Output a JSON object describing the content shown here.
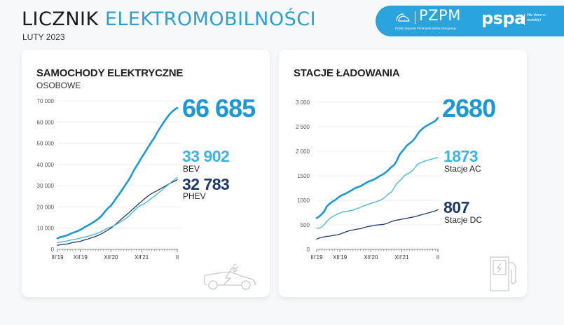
{
  "header": {
    "title_part1": "LICZNIK",
    "title_part2": "ELEKTROMOBILNOŚCI",
    "subtitle": "LUTY 2023"
  },
  "banner": {
    "pzpm_logo": "PZPM",
    "pzpm_subtitle": "Polski Związek Przemysłu Motoryzacyjnego",
    "pspa_logo": "pspa",
    "pspa_tagline": "We drive e-mobility!",
    "background_color": "#2ba4de"
  },
  "cars_card": {
    "title": "SAMOCHODY ELEKTRYCZNE",
    "subtitle": "OSOBOWE",
    "total_value": "66 685",
    "bev_value": "33 902",
    "bev_label": "BEV",
    "phev_value": "32 783",
    "phev_label": "PHEV",
    "icon": "electric-car-icon"
  },
  "stations_card": {
    "title": "STACJE ŁADOWANIA",
    "total_value": "2680",
    "ac_value": "1873",
    "ac_label": "Stacje AC",
    "dc_value": "807",
    "dc_label": "Stacje DC",
    "icon": "charging-station-icon"
  },
  "colors": {
    "total": "#1b98d5",
    "secondary": "#3db4e5",
    "tertiary": "#1d3a6b",
    "grid": "#ececec"
  },
  "chart_data": [
    {
      "type": "line",
      "title": "SAMOCHODY ELEKTRYCZNE OSOBOWE",
      "xlabel": "",
      "ylabel": "",
      "ylim": [
        0,
        70000
      ],
      "yticks": [
        "0",
        "10 000",
        "20 000",
        "30 000",
        "40 000",
        "50 000",
        "60 000",
        "70 000"
      ],
      "ytick_values": [
        0,
        10000,
        20000,
        30000,
        40000,
        50000,
        60000,
        70000
      ],
      "xtick_labels": [
        "III'19",
        "XII'19",
        "XII'20",
        "XII'21",
        "II"
      ],
      "xtick_index": [
        0,
        9,
        21,
        33,
        47
      ],
      "grid": true,
      "legend": "right-side value labels",
      "series": [
        {
          "name": "Total",
          "color": "#1b98d5",
          "width": 2.6,
          "final_label": "66 685",
          "values": [
            5200,
            5700,
            6000,
            6300,
            6700,
            7300,
            7800,
            8200,
            8700,
            9200,
            9900,
            10700,
            11300,
            12000,
            12700,
            13500,
            14400,
            15500,
            16800,
            18300,
            19600,
            20600,
            22300,
            24000,
            25700,
            27400,
            29200,
            31000,
            32800,
            34900,
            37200,
            39300,
            41100,
            43300,
            45100,
            47000,
            49000,
            50800,
            52600,
            54800,
            56800,
            58600,
            60500,
            62100,
            63700,
            64900,
            65900,
            66685
          ]
        },
        {
          "name": "BEV",
          "color": "#3db4e5",
          "width": 1.3,
          "final_label": "33 902",
          "values": [
            3100,
            3400,
            3600,
            3800,
            4000,
            4300,
            4600,
            4800,
            5000,
            5300,
            5600,
            5900,
            6200,
            6500,
            6900,
            7300,
            7800,
            8300,
            8900,
            9600,
            10200,
            10500,
            11000,
            11700,
            12400,
            13100,
            13900,
            14700,
            15700,
            16900,
            18100,
            19300,
            20300,
            21000,
            21500,
            22300,
            23200,
            24200,
            25000,
            26000,
            27000,
            28000,
            29000,
            30000,
            31000,
            32000,
            33000,
            33902
          ]
        },
        {
          "name": "PHEV",
          "color": "#1d3a6b",
          "width": 1.3,
          "final_label": "32 783",
          "values": [
            1900,
            2100,
            2300,
            2400,
            2600,
            2900,
            3200,
            3400,
            3600,
            3800,
            4200,
            4600,
            4900,
            5300,
            5700,
            6100,
            6600,
            7200,
            7800,
            8600,
            9300,
            10000,
            11000,
            12000,
            13100,
            14200,
            15200,
            16200,
            17200,
            18400,
            19400,
            20500,
            21600,
            22600,
            23700,
            24600,
            25600,
            26300,
            27000,
            27600,
            28300,
            29000,
            29600,
            30300,
            31000,
            31600,
            32200,
            32783
          ]
        }
      ]
    },
    {
      "type": "line",
      "title": "STACJE ŁADOWANIA",
      "xlabel": "",
      "ylabel": "",
      "ylim": [
        0,
        3000
      ],
      "yticks": [
        "0",
        "500",
        "1000",
        "1500",
        "2 000",
        "2 500",
        "3 000"
      ],
      "ytick_values": [
        0,
        500,
        1000,
        1500,
        2000,
        2500,
        3000
      ],
      "xtick_labels": [
        "III'19",
        "XII'19",
        "XII'20",
        "XII'21",
        "II"
      ],
      "xtick_index": [
        0,
        9,
        21,
        33,
        47
      ],
      "grid": true,
      "legend": "right-side value labels",
      "series": [
        {
          "name": "Total",
          "color": "#1b98d5",
          "width": 2.6,
          "final_label": "2680",
          "values": [
            640,
            670,
            720,
            780,
            880,
            930,
            970,
            1000,
            1040,
            1080,
            1110,
            1130,
            1160,
            1190,
            1220,
            1250,
            1270,
            1290,
            1320,
            1350,
            1380,
            1400,
            1420,
            1450,
            1480,
            1510,
            1540,
            1580,
            1630,
            1680,
            1720,
            1800,
            1920,
            1990,
            2050,
            2120,
            2160,
            2200,
            2260,
            2340,
            2410,
            2460,
            2500,
            2530,
            2560,
            2590,
            2620,
            2680
          ]
        },
        {
          "name": "Stacje AC",
          "color": "#3db4e5",
          "width": 1.3,
          "final_label": "1873",
          "values": [
            430,
            430,
            460,
            510,
            570,
            630,
            660,
            690,
            720,
            740,
            760,
            770,
            780,
            790,
            800,
            820,
            840,
            860,
            880,
            900,
            920,
            940,
            950,
            970,
            990,
            1010,
            1040,
            1090,
            1140,
            1170,
            1250,
            1340,
            1390,
            1440,
            1500,
            1540,
            1560,
            1600,
            1660,
            1730,
            1760,
            1780,
            1800,
            1820,
            1830,
            1845,
            1860,
            1873
          ]
        },
        {
          "name": "Stacje DC",
          "color": "#1d3a6b",
          "width": 1.3,
          "final_label": "807",
          "values": [
            210,
            230,
            245,
            255,
            265,
            270,
            280,
            290,
            295,
            310,
            330,
            350,
            370,
            385,
            395,
            405,
            415,
            420,
            440,
            455,
            465,
            475,
            485,
            495,
            500,
            505,
            510,
            525,
            545,
            565,
            585,
            595,
            605,
            615,
            625,
            635,
            645,
            655,
            665,
            680,
            695,
            710,
            725,
            740,
            755,
            770,
            785,
            807
          ]
        }
      ]
    }
  ]
}
